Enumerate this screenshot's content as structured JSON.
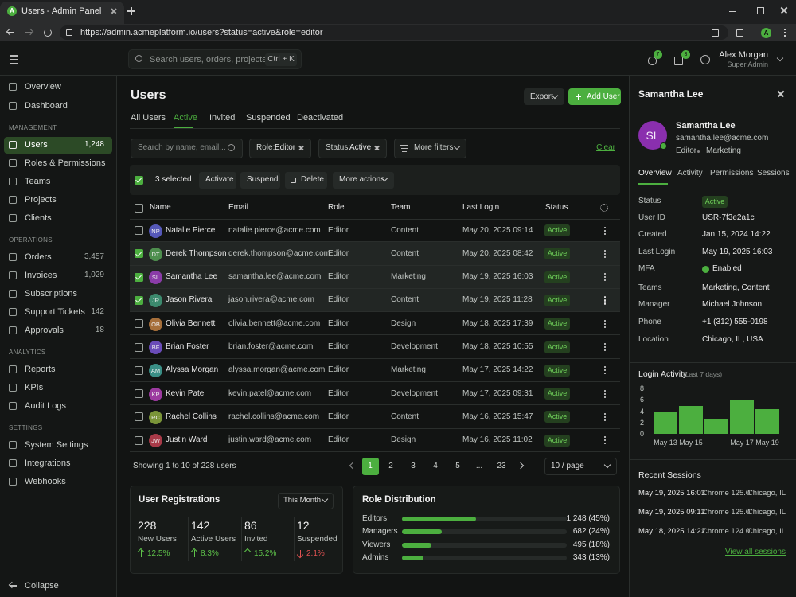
{
  "browser": {
    "tab_icon": "A",
    "tab_title": "Users - Admin Panel",
    "url": "https://admin.acmeplatform.io/users?status=active&role=editor",
    "profile": "A"
  },
  "topbar": {
    "search_placeholder": "Search users, orders, projects...",
    "shortcut": "Ctrl + K",
    "notifications": "7",
    "messages": "3",
    "user_name": "Alex Morgan",
    "user_role": "Super Admin"
  },
  "sidebar": {
    "top": [
      {
        "label": "Overview"
      },
      {
        "label": "Dashboard"
      }
    ],
    "sections": [
      {
        "title": "MANAGEMENT",
        "items": [
          {
            "label": "Users",
            "count": "1,248",
            "active": true
          },
          {
            "label": "Roles & Permissions"
          },
          {
            "label": "Teams"
          },
          {
            "label": "Projects"
          },
          {
            "label": "Clients"
          }
        ]
      },
      {
        "title": "OPERATIONS",
        "items": [
          {
            "label": "Orders",
            "count": "3,457"
          },
          {
            "label": "Invoices",
            "count": "1,029"
          },
          {
            "label": "Subscriptions"
          },
          {
            "label": "Support Tickets",
            "count": "142"
          },
          {
            "label": "Approvals",
            "count": "18"
          }
        ]
      },
      {
        "title": "ANALYTICS",
        "items": [
          {
            "label": "Reports"
          },
          {
            "label": "KPIs"
          },
          {
            "label": "Audit Logs"
          }
        ]
      },
      {
        "title": "SETTINGS",
        "items": [
          {
            "label": "System Settings"
          },
          {
            "label": "Integrations"
          },
          {
            "label": "Webhooks"
          }
        ]
      }
    ],
    "collapse": "Collapse"
  },
  "header": {
    "title": "Users",
    "export": "Export",
    "add_user": "Add User"
  },
  "tabs": [
    {
      "label": "All Users"
    },
    {
      "label": "Active",
      "active": true
    },
    {
      "label": "Invited"
    },
    {
      "label": "Suspended"
    },
    {
      "label": "Deactivated"
    }
  ],
  "filters": {
    "search_placeholder": "Search by name, email...",
    "chips": [
      {
        "key": "Role:",
        "value": "Editor"
      },
      {
        "key": "Status:",
        "value": "Active"
      }
    ],
    "more": "More filters",
    "clear": "Clear"
  },
  "bulk": {
    "selected": "3 selected",
    "actions": [
      "Activate",
      "Suspend",
      "Delete",
      "More actions"
    ]
  },
  "table": {
    "columns": [
      "Name",
      "Email",
      "Role",
      "Team",
      "Last Login",
      "Status"
    ],
    "rows": [
      {
        "initials": "NP",
        "color": "#5558b8",
        "name": "Natalie Pierce",
        "email": "natalie.pierce@acme.com",
        "role": "Editor",
        "team": "Content",
        "last_login": "May 20, 2025 09:14",
        "status": "Active",
        "selected": false
      },
      {
        "initials": "DT",
        "color": "#4e8f4e",
        "name": "Derek Thompson",
        "email": "derek.thompson@acme.com",
        "role": "Editor",
        "team": "Content",
        "last_login": "May 20, 2025 08:42",
        "status": "Active",
        "selected": true
      },
      {
        "initials": "SL",
        "color": "#8a3ca8",
        "name": "Samantha Lee",
        "email": "samantha.lee@acme.com",
        "role": "Editor",
        "team": "Marketing",
        "last_login": "May 19, 2025 16:03",
        "status": "Active",
        "selected": true
      },
      {
        "initials": "JR",
        "color": "#3c8a6e",
        "name": "Jason Rivera",
        "email": "jason.rivera@acme.com",
        "role": "Editor",
        "team": "Content",
        "last_login": "May 19, 2025 11:28",
        "status": "Active",
        "selected": true
      },
      {
        "initials": "OB",
        "color": "#a66f3a",
        "name": "Olivia Bennett",
        "email": "olivia.bennett@acme.com",
        "role": "Editor",
        "team": "Design",
        "last_login": "May 18, 2025 17:39",
        "status": "Active",
        "selected": false
      },
      {
        "initials": "BF",
        "color": "#6a4cb8",
        "name": "Brian Foster",
        "email": "brian.foster@acme.com",
        "role": "Editor",
        "team": "Development",
        "last_login": "May 18, 2025 10:55",
        "status": "Active",
        "selected": false
      },
      {
        "initials": "AM",
        "color": "#3a8f86",
        "name": "Alyssa Morgan",
        "email": "alyssa.morgan@acme.com",
        "role": "Editor",
        "team": "Marketing",
        "last_login": "May 17, 2025 14:22",
        "status": "Active",
        "selected": false
      },
      {
        "initials": "KP",
        "color": "#9c3aa0",
        "name": "Kevin Patel",
        "email": "kevin.patel@acme.com",
        "role": "Editor",
        "team": "Development",
        "last_login": "May 17, 2025 09:31",
        "status": "Active",
        "selected": false
      },
      {
        "initials": "RC",
        "color": "#7a9438",
        "name": "Rachel Collins",
        "email": "rachel.collins@acme.com",
        "role": "Editor",
        "team": "Content",
        "last_login": "May 16, 2025 15:47",
        "status": "Active",
        "selected": false
      },
      {
        "initials": "JW",
        "color": "#a83a48",
        "name": "Justin Ward",
        "email": "justin.ward@acme.com",
        "role": "Editor",
        "team": "Design",
        "last_login": "May 16, 2025 11:02",
        "status": "Active",
        "selected": false
      }
    ]
  },
  "pagination": {
    "summary": "Showing 1 to 10 of 228 users",
    "pages": [
      "1",
      "2",
      "3",
      "4",
      "5",
      "...",
      "23"
    ],
    "current": 0,
    "per_page": "10 / page"
  },
  "registrations": {
    "title": "User Registrations",
    "period": "This Month",
    "stats": [
      {
        "value": "228",
        "label": "New Users",
        "change": "12.5%",
        "direction": "up"
      },
      {
        "value": "142",
        "label": "Active Users",
        "change": "8.3%",
        "direction": "up"
      },
      {
        "value": "86",
        "label": "Invited",
        "change": "15.2%",
        "direction": "up"
      },
      {
        "value": "12",
        "label": "Suspended",
        "change": "2.1%",
        "direction": "down"
      }
    ]
  },
  "roles": {
    "title": "Role Distribution",
    "color": "#4caf3f",
    "items": [
      {
        "name": "Editors",
        "percent": 45,
        "label": "1,248 (45%)"
      },
      {
        "name": "Managers",
        "percent": 24,
        "label": "682 (24%)"
      },
      {
        "name": "Viewers",
        "percent": 18,
        "label": "495 (18%)"
      },
      {
        "name": "Admins",
        "percent": 13,
        "label": "343 (13%)"
      }
    ]
  },
  "detail": {
    "header": "Samantha Lee",
    "initials": "SL",
    "avatar_color": "#8a2fae",
    "name": "Samantha Lee",
    "email": "samantha.lee@acme.com",
    "role": "Editor",
    "team": "Marketing",
    "tabs": [
      {
        "label": "Overview",
        "active": true
      },
      {
        "label": "Activity"
      },
      {
        "label": "Permissions"
      },
      {
        "label": "Sessions"
      }
    ],
    "fields": [
      {
        "label": "Status",
        "value": "Active",
        "kind": "badge"
      },
      {
        "label": "User ID",
        "value": "USR-7f3e2a1c"
      },
      {
        "label": "Created",
        "value": "Jan 15, 2024 14:22"
      },
      {
        "label": "Last Login",
        "value": "May 19, 2025 16:03"
      },
      {
        "label": "MFA",
        "value": "Enabled",
        "kind": "check"
      },
      {
        "label": "Teams",
        "value": "Marketing, Content"
      },
      {
        "label": "Manager",
        "value": "Michael Johnson"
      },
      {
        "label": "Phone",
        "value": "+1 (312) 555-0198"
      },
      {
        "label": "Location",
        "value": "Chicago, IL, USA"
      }
    ],
    "chart_data": {
      "type": "bar",
      "title": "Login Activity",
      "subtitle": "(Last 7 days)",
      "categories": [
        "May 13",
        "May 15",
        null,
        "May 17",
        "May 19"
      ],
      "values": [
        3.8,
        4.9,
        2.6,
        6.1,
        4.4
      ],
      "color": "#4caf3f",
      "ylim": [
        0,
        8
      ],
      "yticks": [
        0,
        2,
        4,
        6,
        8
      ]
    },
    "sessions_title": "Recent Sessions",
    "sessions": [
      {
        "date": "May 19, 2025 16:03",
        "browser": "Chrome 125.0",
        "location": "Chicago, IL"
      },
      {
        "date": "May 19, 2025 09:12",
        "browser": "Chrome 125.0",
        "location": "Chicago, IL"
      },
      {
        "date": "May 18, 2025 14:22",
        "browser": "Chrome 124.0",
        "location": "Chicago, IL"
      }
    ],
    "view_all": "View all sessions"
  }
}
